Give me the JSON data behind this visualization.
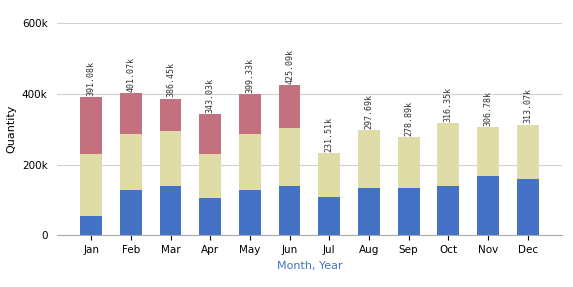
{
  "months": [
    "Jan",
    "Feb",
    "Mar",
    "Apr",
    "May",
    "Jun",
    "Jul",
    "Aug",
    "Sep",
    "Oct",
    "Nov",
    "Dec"
  ],
  "blue": [
    55000,
    128000,
    140000,
    105000,
    128000,
    138000,
    108000,
    135000,
    135000,
    138000,
    168000,
    160000
  ],
  "tan": [
    175000,
    157000,
    155000,
    125000,
    158000,
    165000,
    123510,
    162690,
    143890,
    178350,
    138780,
    153070
  ],
  "pink": [
    161080,
    116070,
    91450,
    113030,
    113330,
    122090,
    0,
    0,
    0,
    0,
    0,
    0
  ],
  "totals_vals": [
    391080,
    401070,
    386450,
    343030,
    399330,
    425090,
    231510,
    297690,
    278890,
    316350,
    306780,
    313070
  ],
  "totals": [
    "391.08k",
    "401.07k",
    "386.45k",
    "343.03k",
    "399.33k",
    "425.09k",
    "231.51k",
    "297.69k",
    "278.89k",
    "316.35k",
    "306.78k",
    "313.07k"
  ],
  "blue_color": "#4472c4",
  "tan_color": "#e0dca8",
  "pink_color": "#c4717f",
  "xlabel": "Month, Year",
  "ylabel": "Quantity",
  "ylim": [
    0,
    600000
  ],
  "yticks": [
    0,
    200000,
    400000,
    600000
  ],
  "background_color": "#ffffff",
  "grid_color": "#d0d0d0",
  "xlabel_color": "#4472c4",
  "bar_width": 0.55,
  "label_fontsize": 6.0,
  "tick_fontsize": 7.5
}
